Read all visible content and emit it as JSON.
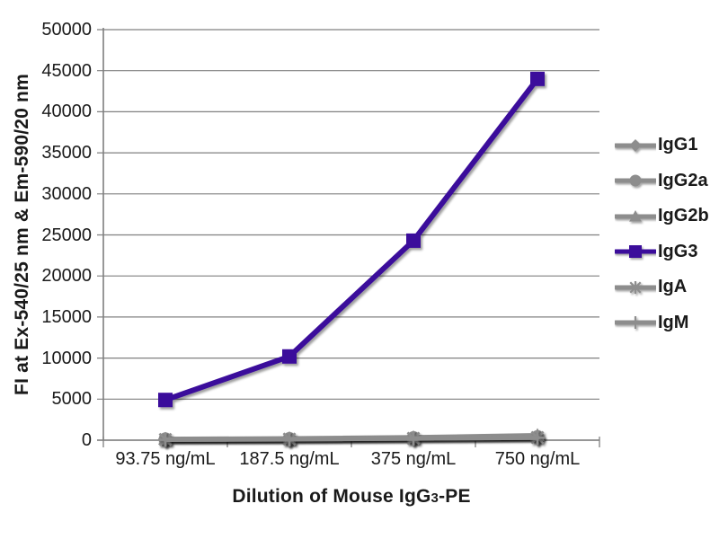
{
  "chart_data": {
    "type": "line",
    "title": "",
    "xlabel": "Dilution of Mouse IgG3-PE",
    "xlabel_parts": {
      "prefix": "Dilution of Mouse IgG",
      "sub": "3",
      "suffix": "-PE"
    },
    "ylabel": "FI at Ex-540/25 nm & Em-590/20 nm",
    "categories": [
      "93.75 ng/mL",
      "187.5 ng/mL",
      "375 ng/mL",
      "750 ng/mL"
    ],
    "ylim": [
      0,
      50000
    ],
    "yticks": [
      0,
      5000,
      10000,
      15000,
      20000,
      25000,
      30000,
      35000,
      40000,
      45000,
      50000
    ],
    "grid": true,
    "legend_position": "right",
    "series": [
      {
        "name": "IgG1",
        "marker": "diamond",
        "color": "#8d8d8d",
        "values": [
          100,
          150,
          250,
          350
        ]
      },
      {
        "name": "IgG2a",
        "marker": "circle",
        "color": "#8d8d8d",
        "values": [
          120,
          170,
          280,
          400
        ]
      },
      {
        "name": "IgG2b",
        "marker": "triangle",
        "color": "#8d8d8d",
        "values": [
          150,
          220,
          350,
          600
        ]
      },
      {
        "name": "IgG3",
        "marker": "square",
        "color": "#3a0c9b",
        "values": [
          4900,
          10200,
          24300,
          44000
        ]
      },
      {
        "name": "IgA",
        "marker": "asterisk",
        "color": "#8d8d8d",
        "values": [
          80,
          130,
          220,
          320
        ]
      },
      {
        "name": "IgM",
        "marker": "plus",
        "color": "#8d8d8d",
        "values": [
          60,
          110,
          200,
          300
        ]
      }
    ]
  },
  "colors": {
    "grid": "#808080",
    "axis": "#7f7f7f",
    "text": "#1a1a1a",
    "accent_purple": "#3a0c9b",
    "series_gray": "#8d8d8d"
  }
}
